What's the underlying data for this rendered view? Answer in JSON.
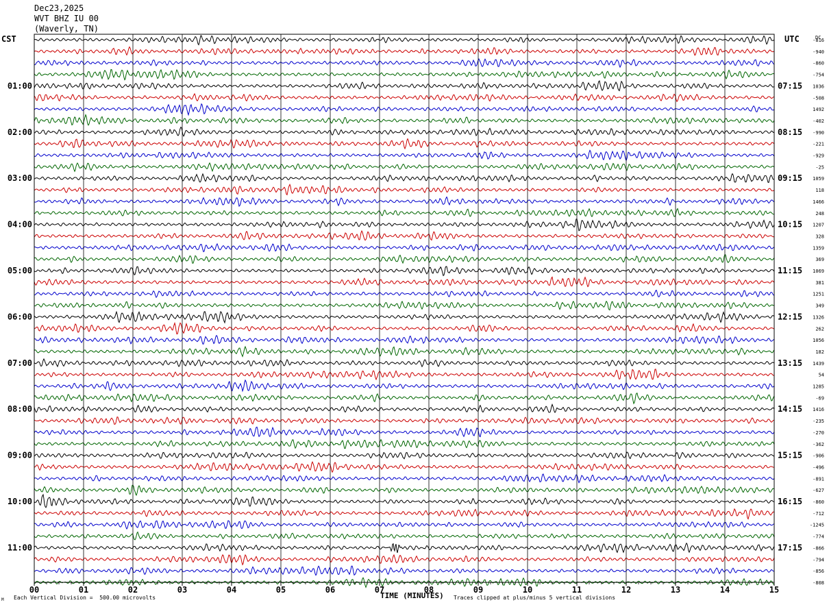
{
  "header": {
    "date": "Dec23,2025",
    "station": "WVT BHZ IU 00",
    "location": "(Waverly, TN)"
  },
  "left_timezone": "CST",
  "right_timezone": "UTC",
  "right_header": "DC",
  "footer": {
    "scale_text": "Each Vertical Division =  500.00 microvolts",
    "xaxis_title": "TIME (MINUTES)",
    "clip_text": "Traces clipped at plus/minus 5 vertical divisions",
    "corner_mark": "M"
  },
  "colors": {
    "trace_cycle": [
      "#000000",
      "#cc0000",
      "#0000cc",
      "#006600"
    ],
    "grid": "#000000"
  },
  "chart_data": {
    "type": "line",
    "title": "",
    "xlabel": "TIME (MINUTES)",
    "xlim": [
      0,
      15
    ],
    "x_ticks": [
      "00",
      "01",
      "02",
      "03",
      "04",
      "05",
      "06",
      "07",
      "08",
      "09",
      "10",
      "11",
      "12",
      "13",
      "14",
      "15"
    ],
    "rows": 48,
    "row_minutes": 15,
    "left_time_labels": [
      "01:00",
      "02:00",
      "03:00",
      "04:00",
      "05:00",
      "06:00",
      "07:00",
      "08:00",
      "09:00",
      "10:00",
      "11:00"
    ],
    "right_time_labels": [
      "07:15",
      "08:15",
      "09:15",
      "10:15",
      "11:15",
      "12:15",
      "13:15",
      "14:15",
      "15:15",
      "16:15",
      "17:15"
    ],
    "dc_offsets": [
      "-816",
      "-940",
      "-860",
      "-754",
      "1036",
      "-508",
      "1492",
      "-402",
      "-990",
      "-221",
      "-929",
      "-25",
      "1059",
      "118",
      "1466",
      "248",
      "1207",
      "328",
      "1359",
      "369",
      "1069",
      "381",
      "1251",
      "349",
      "1326",
      "262",
      "1056",
      "182",
      "1439",
      "54",
      "1285",
      "-69",
      "1416",
      "-235",
      "-270",
      "-362",
      "-906",
      "-496",
      "-891",
      "-627",
      "-860",
      "-712",
      "-1245",
      "-774",
      "-866",
      "-794",
      "-856",
      "-808"
    ],
    "events": [
      {
        "row": 44,
        "minute": 7.32,
        "amplitude_divisions": 2.5
      }
    ]
  }
}
